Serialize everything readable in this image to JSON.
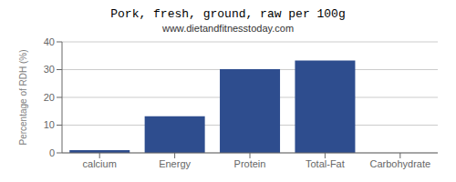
{
  "chart_data": {
    "type": "bar",
    "title": "Pork, fresh, ground, raw per 100g",
    "subtitle": "www.dietandfitnesstoday.com",
    "categories": [
      "calcium",
      "Energy",
      "Protein",
      "Total-Fat",
      "Carbohydrate"
    ],
    "values": [
      1.0,
      13.2,
      30.2,
      33.3,
      0.0
    ],
    "color": "#2e4d8e",
    "ylabel": "Percentage of RDH (%)",
    "ylim": [
      0,
      40
    ],
    "yticks": [
      0,
      10,
      20,
      30,
      40
    ],
    "grid": true
  }
}
